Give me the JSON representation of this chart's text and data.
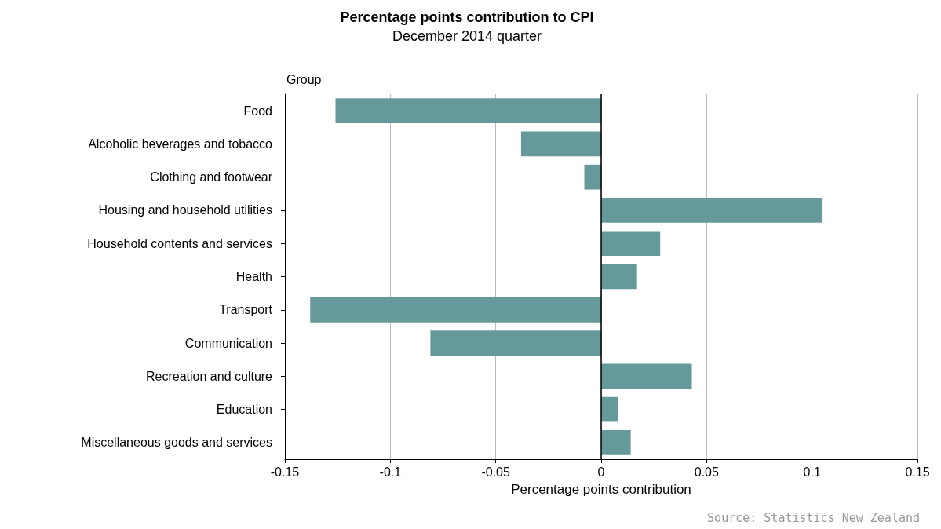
{
  "chart_data": {
    "type": "bar",
    "orientation": "horizontal",
    "title": "Percentage points contribution to CPI",
    "subtitle": "December 2014 quarter",
    "ylabel": "Group",
    "xlabel": "Percentage points contribution",
    "categories": [
      "Food",
      "Alcoholic beverages and tobacco",
      "Clothing and footwear",
      "Housing and household utilities",
      "Household contents and services",
      "Health",
      "Transport",
      "Communication",
      "Recreation and culture",
      "Education",
      "Miscellaneous goods and services"
    ],
    "values": [
      -0.126,
      -0.038,
      -0.008,
      0.105,
      0.028,
      0.017,
      -0.138,
      -0.081,
      0.043,
      0.008,
      0.014
    ],
    "color": "#669999",
    "xlim": [
      -0.15,
      0.15
    ],
    "xticks": [
      -0.15,
      -0.1,
      -0.05,
      0,
      0.05,
      0.1,
      0.15
    ],
    "grid": "x",
    "ref_lines": [
      {
        "axis": "x",
        "value": 0,
        "color": "#000000"
      }
    ],
    "annotations": [
      "Source: Statistics New Zealand"
    ]
  }
}
